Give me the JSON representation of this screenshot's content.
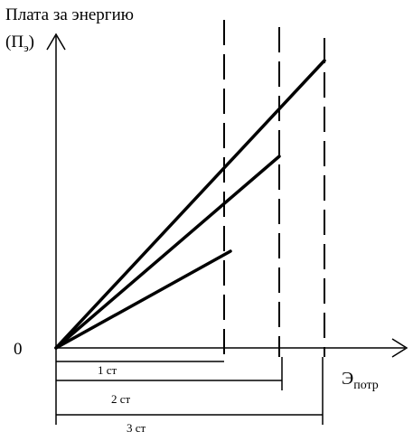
{
  "y_axis_label_line1": "Плата за энергию",
  "y_axis_label_line2_main": "(П",
  "y_axis_label_line2_sub": "э",
  "y_axis_label_line2_close": ")",
  "x_axis_label_main": "Э",
  "x_axis_label_sub": "потр",
  "origin_label": "0",
  "segments": [
    {
      "label": "1 ст"
    },
    {
      "label": "2 ст"
    },
    {
      "label": "3 ст"
    }
  ]
}
